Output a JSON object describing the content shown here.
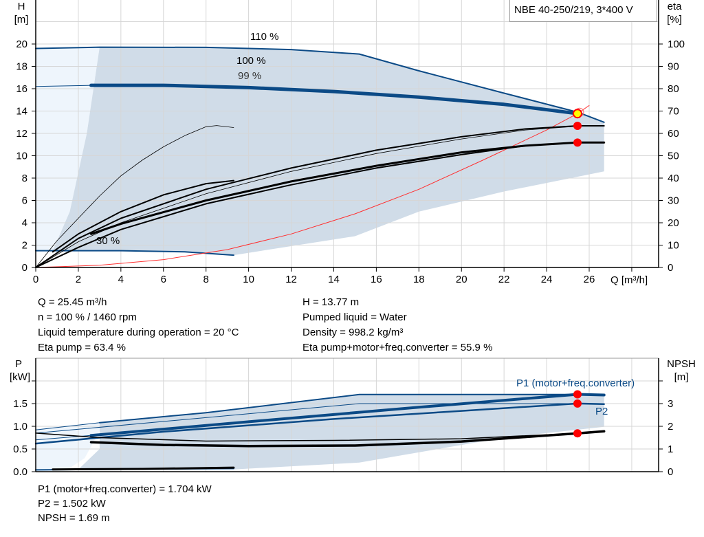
{
  "product_label": "NBE 40-250/219, 3*400 V",
  "chart_data": [
    {
      "type": "line",
      "title": "",
      "xlabel": "Q [m³/h]",
      "ylabel_left": "H\n[m]",
      "ylabel_left_parts": [
        "H",
        "[m]"
      ],
      "ylabel_right_parts": [
        "eta",
        "[%]"
      ],
      "xlim": [
        0,
        29
      ],
      "ylim_left": [
        0,
        24
      ],
      "ylim_right": [
        0,
        120
      ],
      "xticks": [
        0,
        2,
        4,
        6,
        8,
        10,
        12,
        14,
        16,
        18,
        20,
        22,
        24,
        26
      ],
      "yticks_left": [
        0,
        2,
        4,
        6,
        8,
        10,
        12,
        14,
        16,
        18,
        20
      ],
      "yticks_right": [
        0,
        10,
        20,
        30,
        40,
        50,
        60,
        70,
        80,
        90,
        100
      ],
      "grid": true,
      "annotations": [
        "110 %",
        "100 %",
        "99 %",
        "30 %"
      ],
      "series": [
        {
          "name": "110 %",
          "axis": "left",
          "color": "#0b4a86",
          "width": 2,
          "points": [
            [
              0,
              19.6
            ],
            [
              3,
              19.72
            ],
            [
              8,
              19.7
            ],
            [
              12,
              19.5
            ],
            [
              15.2,
              19.1
            ],
            [
              18,
              17.6
            ],
            [
              22,
              15.6
            ],
            [
              25.45,
              13.9
            ],
            [
              26.7,
              13.0
            ]
          ]
        },
        {
          "name": "100 %",
          "axis": "left",
          "color": "#0b4a86",
          "width": 5,
          "points": [
            [
              2.6,
              16.3
            ],
            [
              6,
              16.3
            ],
            [
              10,
              16.1
            ],
            [
              14,
              15.75
            ],
            [
              18,
              15.25
            ],
            [
              22,
              14.6
            ],
            [
              25.45,
              13.77
            ]
          ]
        },
        {
          "axis": "left",
          "color": "#0b4a86",
          "width": 1,
          "points": [
            [
              0,
              16.2
            ],
            [
              2.6,
              16.3
            ]
          ]
        },
        {
          "name": "30 %",
          "axis": "left",
          "color": "#0b4a86",
          "width": 2,
          "points": [
            [
              0,
              1.5
            ],
            [
              4,
              1.5
            ],
            [
              7,
              1.4
            ],
            [
              9.3,
              1.1
            ]
          ]
        },
        {
          "axis": "left",
          "color": "#ff3030",
          "width": 1,
          "points": [
            [
              0,
              0
            ],
            [
              3,
              0.2
            ],
            [
              6,
              0.7
            ],
            [
              9,
              1.6
            ],
            [
              12,
              3.0
            ],
            [
              15,
              4.8
            ],
            [
              18,
              7.0
            ],
            [
              21,
              9.6
            ],
            [
              24,
              12.3
            ],
            [
              25.45,
              13.77
            ],
            [
              26,
              14.5
            ]
          ]
        },
        {
          "axis": "right",
          "color": "#000",
          "width": 0.8,
          "points": [
            [
              0,
              0
            ],
            [
              1,
              12
            ],
            [
              2,
              22
            ],
            [
              3,
              32
            ],
            [
              4,
              41
            ],
            [
              5,
              48
            ],
            [
              6,
              54
            ],
            [
              7,
              59
            ],
            [
              8,
              63
            ],
            [
              8.5,
              63.5
            ],
            [
              9.3,
              62.6
            ]
          ]
        },
        {
          "axis": "right",
          "color": "#000",
          "width": 2,
          "points": [
            [
              0.8,
              7
            ],
            [
              2,
              15
            ],
            [
              4,
              25
            ],
            [
              6,
              32.5
            ],
            [
              8,
              37.5
            ],
            [
              9.3,
              38.9
            ]
          ]
        },
        {
          "axis": "right",
          "color": "#000",
          "width": 2,
          "points": [
            [
              0,
              0
            ],
            [
              2,
              13
            ],
            [
              4,
              22
            ],
            [
              8,
              35
            ],
            [
              12,
              44.5
            ],
            [
              16,
              52.5
            ],
            [
              20,
              58.5
            ],
            [
              23,
              62
            ],
            [
              25.45,
              63.4
            ],
            [
              26.7,
              63.4
            ]
          ]
        },
        {
          "axis": "right",
          "color": "#000",
          "width": 0.8,
          "points": [
            [
              0,
              0
            ],
            [
              2,
              11.5
            ],
            [
              4,
              20
            ],
            [
              8,
              33
            ],
            [
              12,
              43
            ],
            [
              16,
              51
            ],
            [
              20,
              57.5
            ],
            [
              23,
              61.5
            ],
            [
              25.45,
              63.2
            ]
          ]
        },
        {
          "axis": "right",
          "color": "#000",
          "width": 3,
          "points": [
            [
              2.6,
              15
            ],
            [
              4,
              19.5
            ],
            [
              8,
              30
            ],
            [
              12,
              38.5
            ],
            [
              16,
              45.5
            ],
            [
              20,
              51.5
            ],
            [
              23,
              54.5
            ],
            [
              25.45,
              55.9
            ],
            [
              26.7,
              55.9
            ]
          ]
        },
        {
          "axis": "right",
          "color": "#000",
          "width": 2,
          "points": [
            [
              0,
              0
            ],
            [
              2,
              9
            ],
            [
              4,
              17
            ],
            [
              8,
              28.5
            ],
            [
              12,
              37
            ],
            [
              16,
              44.5
            ],
            [
              20,
              50.5
            ],
            [
              23,
              54.5
            ],
            [
              25.45,
              55.9
            ]
          ]
        }
      ],
      "operating_point": {
        "Q": 25.45,
        "H": 13.77,
        "eta_pump": 63.4,
        "eta_total": 55.9
      }
    },
    {
      "type": "line",
      "xlim": [
        0,
        29
      ],
      "ylabel_left_parts": [
        "P",
        "[kW]"
      ],
      "ylabel_right_parts": [
        "NPSH",
        "[m]"
      ],
      "ylim_left": [
        0,
        2.5
      ],
      "ylim_right": [
        0,
        5
      ],
      "yticks_left": [
        "0.0",
        "0.5",
        "1.0",
        "1.5"
      ],
      "yticks_right": [
        "0",
        "1",
        "2",
        "3"
      ],
      "annotations": [
        "P1 (motor+freq.converter)",
        "P2"
      ],
      "series": [
        {
          "axis": "left",
          "color": "#0b4a86",
          "width": 2,
          "points": [
            [
              3,
              1.08
            ],
            [
              8,
              1.3
            ],
            [
              15.2,
              1.7
            ],
            [
              25.45,
              1.7
            ],
            [
              26.7,
              1.69
            ]
          ]
        },
        {
          "axis": "left",
          "color": "#0b4a86",
          "width": 1,
          "points": [
            [
              0,
              0.92
            ],
            [
              3,
              1.08
            ]
          ]
        },
        {
          "axis": "left",
          "color": "#0b4a86",
          "width": 1,
          "points": [
            [
              0,
              0.85
            ],
            [
              15.2,
              1.5
            ],
            [
              25.45,
              1.5
            ]
          ]
        },
        {
          "name": "P1 (motor+freq.converter)",
          "axis": "left",
          "color": "#0b4a86",
          "width": 4,
          "points": [
            [
              2.6,
              0.8
            ],
            [
              10,
              1.1
            ],
            [
              18,
              1.42
            ],
            [
              25.45,
              1.704
            ],
            [
              26.7,
              1.69
            ]
          ]
        },
        {
          "axis": "left",
          "color": "#0b4a86",
          "width": 1,
          "points": [
            [
              0,
              0.7
            ],
            [
              2.6,
              0.8
            ]
          ]
        },
        {
          "name": "P2",
          "axis": "left",
          "color": "#0b4a86",
          "width": 2.5,
          "points": [
            [
              0,
              0.62
            ],
            [
              6,
              0.88
            ],
            [
              14,
              1.16
            ],
            [
              20,
              1.34
            ],
            [
              25.45,
              1.502
            ],
            [
              26.7,
              1.49
            ]
          ]
        },
        {
          "axis": "left",
          "color": "#0b4a86",
          "width": 2,
          "points": [
            [
              0,
              0.04
            ],
            [
              9.3,
              0.07
            ]
          ]
        },
        {
          "axis": "right",
          "color": "#000",
          "width": 1.5,
          "points": [
            [
              0,
              1.7
            ],
            [
              3,
              1.5
            ],
            [
              8,
              1.35
            ],
            [
              14,
              1.38
            ],
            [
              20,
              1.45
            ],
            [
              25.45,
              1.69
            ]
          ]
        },
        {
          "axis": "right",
          "color": "#000",
          "width": 3.5,
          "points": [
            [
              2.6,
              1.3
            ],
            [
              6,
              1.18
            ],
            [
              10,
              1.13
            ],
            [
              15,
              1.15
            ],
            [
              20,
              1.33
            ],
            [
              25.45,
              1.69
            ],
            [
              26.7,
              1.78
            ]
          ]
        },
        {
          "axis": "right",
          "color": "#000",
          "width": 3,
          "points": [
            [
              0.8,
              0.1
            ],
            [
              5,
              0.12
            ],
            [
              9.3,
              0.18
            ]
          ]
        }
      ],
      "operating_point": {
        "Q": 25.45,
        "P1": 1.704,
        "P2": 1.502,
        "NPSH": 1.69
      }
    }
  ],
  "readout_top": {
    "q": "Q = 25.45 m³/h",
    "n": "n = 100 % / 1460 rpm",
    "temp": "Liquid temperature during operation = 20 °C",
    "eta_pump": "Eta pump = 63.4 %",
    "h": "H = 13.77 m",
    "liquid": "Pumped liquid = Water",
    "density": "Density = 998.2 kg/m³",
    "eta_total": "Eta pump+motor+freq.converter = 55.9 %"
  },
  "readout_bottom": {
    "p1": "P1 (motor+freq.converter) = 1.704 kW",
    "p2": "P2 = 1.502 kW",
    "npsh": "NPSH = 1.69 m"
  },
  "colors": {
    "curve": "#0b4a86",
    "area": "#d0dce8",
    "area_light": "#eef5fc",
    "system": "#ff3030",
    "point": "#ff0000",
    "duty": "#ffff00"
  }
}
